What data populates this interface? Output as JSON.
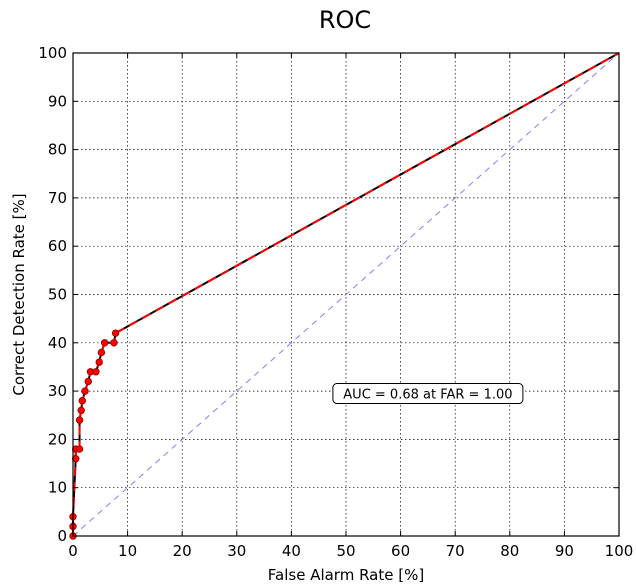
{
  "chart_data": {
    "type": "line",
    "title": "ROC",
    "xlabel": "False Alarm Rate [%]",
    "ylabel": "Correct Detection Rate [%]",
    "xlim": [
      0,
      100
    ],
    "ylim": [
      0,
      100
    ],
    "xticks": [
      0,
      10,
      20,
      30,
      40,
      50,
      60,
      70,
      80,
      90,
      100
    ],
    "yticks": [
      0,
      10,
      20,
      30,
      40,
      50,
      60,
      70,
      80,
      90,
      100
    ],
    "grid": true,
    "series": [
      {
        "color": "#000000",
        "line_style": "solid",
        "x": [
          0,
          0,
          0,
          0.5,
          0.5,
          1.2,
          1.2,
          1.5,
          1.7,
          2.2,
          2.8,
          3.2,
          4.2,
          4.8,
          5.2,
          5.8,
          7.5,
          7.8,
          100
        ],
        "y": [
          0,
          2,
          4,
          16,
          18,
          18,
          24,
          26,
          28,
          30,
          32,
          34,
          34,
          36,
          38,
          40,
          40,
          42,
          100
        ]
      },
      {
        "color": "#ff0000",
        "line_style": "dashed",
        "markers": true,
        "x": [
          0,
          0,
          0,
          0.5,
          0.5,
          1.2,
          1.2,
          1.5,
          1.7,
          2.2,
          2.8,
          3.2,
          4.2,
          4.8,
          5.2,
          5.8,
          7.5,
          7.8,
          100
        ],
        "y": [
          0,
          2,
          4,
          16,
          18,
          18,
          24,
          26,
          28,
          30,
          32,
          34,
          34,
          36,
          38,
          40,
          40,
          42,
          100
        ]
      },
      {
        "color": "#8080ff",
        "line_style": "dashed",
        "x": [
          0,
          100
        ],
        "y": [
          0,
          100
        ]
      }
    ],
    "annotation": {
      "text": "AUC = 0.68 at FAR = 1.00",
      "x": 65,
      "y": 29.5
    }
  }
}
